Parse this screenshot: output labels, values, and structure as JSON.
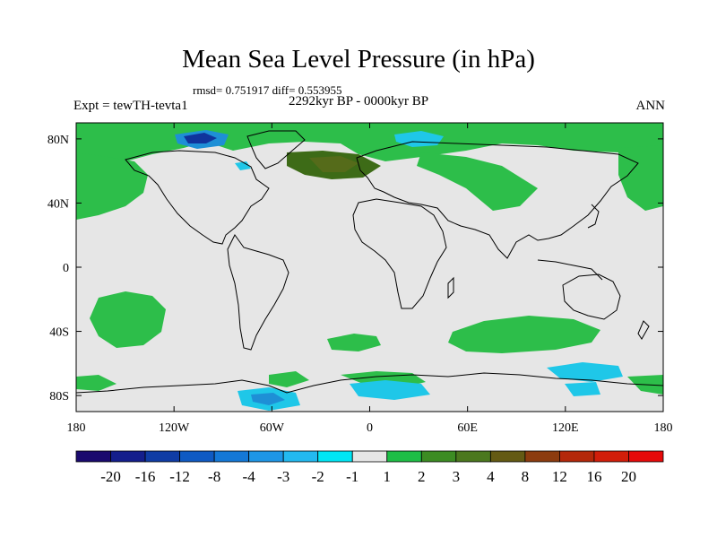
{
  "title": "Mean Sea Level Pressure (in hPa)",
  "stats": "rmsd= 0.751917 diff= 0.553955",
  "expt": "Expt = tewTH-tevta1",
  "period": "2292kyr BP - 0000kyr BP",
  "season": "ANN",
  "colors": {
    "ocean": "#e6e6e6",
    "green": "#2dbe4a",
    "darkgreen": "#3d6b17",
    "olive": "#556b1a",
    "lightblue": "#1fc7e8",
    "blue": "#1e8fd6",
    "navy": "#10339c"
  },
  "chart_data": {
    "type": "heatmap",
    "projection": "cylindrical-equidistant",
    "variable": "Mean Sea Level Pressure difference (hPa)",
    "x_ticks": [
      "180",
      "120W",
      "60W",
      "0",
      "60E",
      "120E",
      "180"
    ],
    "y_ticks": [
      "80N",
      "40N",
      "0",
      "40S",
      "80S"
    ],
    "xlim": [
      -180,
      180
    ],
    "ylim": [
      -90,
      90
    ],
    "colorbar": {
      "labels": [
        "-20",
        "-16",
        "-12",
        "-8",
        "-4",
        "-3",
        "-2",
        "-1",
        "1",
        "2",
        "3",
        "4",
        "8",
        "12",
        "16",
        "20"
      ],
      "colors": [
        "#1a0a6e",
        "#141e8c",
        "#0f3ca5",
        "#0f5ac3",
        "#1478d7",
        "#1e96e6",
        "#23b9f0",
        "#00e6f5",
        "#e6e6e6",
        "#1ebe46",
        "#3c8c23",
        "#4b781e",
        "#645a14",
        "#8c3c0f",
        "#b4280a",
        "#d21e0a",
        "#e60a0a"
      ]
    }
  }
}
